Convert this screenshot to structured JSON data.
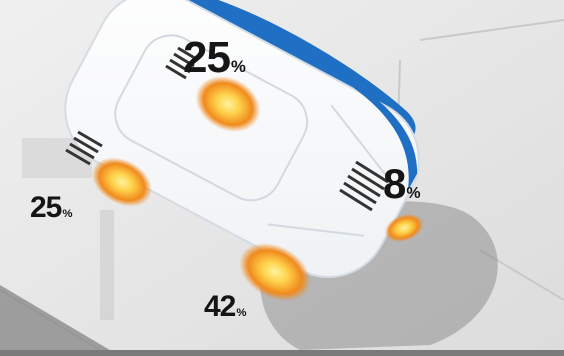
{
  "wheel_loads": [
    {
      "position": "front-left",
      "value": "25",
      "unit": "%"
    },
    {
      "position": "front-right",
      "value": "8",
      "unit": "%"
    },
    {
      "position": "rear-left",
      "value": "25",
      "unit": "%"
    },
    {
      "position": "rear-right",
      "value": "42",
      "unit": "%"
    }
  ],
  "colors": {
    "background": "#e6e6e6",
    "car_body": "#ffffff",
    "car_trim": "#1f6fc4",
    "contact_patch": "#f08a1e",
    "contact_patch_core": "#ffd24a",
    "label_text": "#151515"
  },
  "icons": [
    "car-body-icon",
    "tire-contact-patch-icon",
    "tread-marks-icon"
  ]
}
